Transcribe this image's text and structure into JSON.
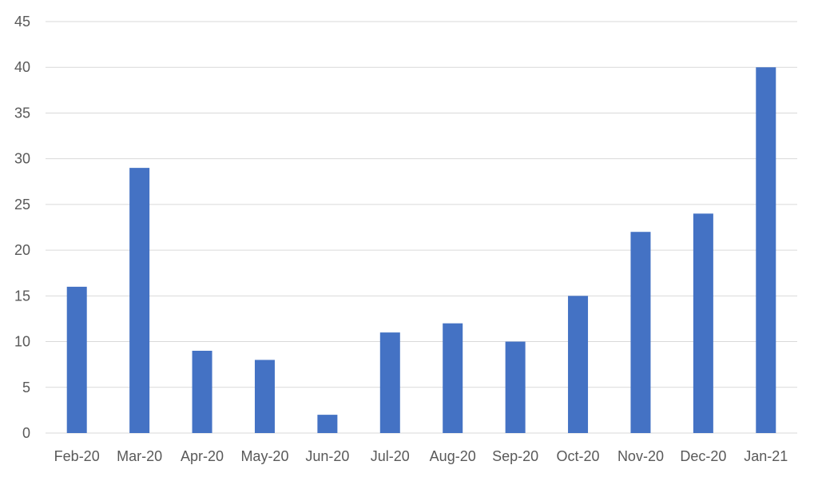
{
  "chart_data": {
    "type": "bar",
    "categories": [
      "Feb-20",
      "Mar-20",
      "Apr-20",
      "May-20",
      "Jun-20",
      "Jul-20",
      "Aug-20",
      "Sep-20",
      "Oct-20",
      "Nov-20",
      "Dec-20",
      "Jan-21"
    ],
    "values": [
      16,
      29,
      9,
      8,
      2,
      11,
      12,
      10,
      15,
      22,
      24,
      40
    ],
    "title": "",
    "xlabel": "",
    "ylabel": "",
    "ylim": [
      0,
      45
    ],
    "yticks": [
      "0",
      "5",
      "10",
      "15",
      "20",
      "25",
      "30",
      "35",
      "40",
      "45"
    ],
    "grid": true,
    "legend": "none",
    "bar_color": "#4472C4"
  }
}
